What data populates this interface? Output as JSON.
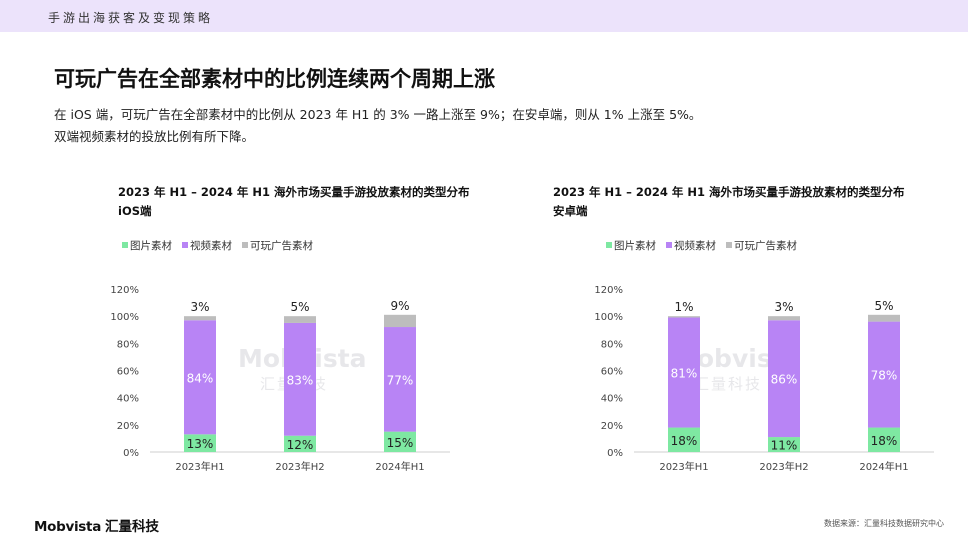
{
  "header": {
    "band_label": "手游出海获客及变现策略"
  },
  "page": {
    "title": "可玩广告在全部素材中的比例连续两个周期上涨",
    "desc_line1": "在 iOS 端，可玩广告在全部素材中的比例从 2023 年 H1 的 3% 一路上涨至 9%；在安卓端，则从 1% 上涨至 5%。",
    "desc_line2": "双端视频素材的投放比例有所下降。"
  },
  "watermark": {
    "wordmark": "Mobvista",
    "cn": "汇量科技"
  },
  "footer": {
    "logo": "Mobvista",
    "logo_cn": "汇量科技",
    "source": "数据来源：汇量科技数据研究中心"
  },
  "colors": {
    "image": "#7ee8a2",
    "video": "#b884f5",
    "playable": "#bdbdbd",
    "band": "#ece3fb"
  },
  "chart_data": [
    {
      "type": "bar",
      "stacked": true,
      "title": "2023 年 H1 – 2024 年 H1 海外市场买量手游投放素材的类型分布",
      "subtitle": "iOS端",
      "categories": [
        "2023年H1",
        "2023年H2",
        "2024年H1"
      ],
      "series": [
        {
          "name": "图片素材",
          "values": [
            13,
            12,
            15
          ],
          "labels": [
            "13%",
            "12%",
            "15%"
          ],
          "color": "#7ee8a2"
        },
        {
          "name": "视频素材",
          "values": [
            84,
            83,
            77
          ],
          "labels": [
            "84%",
            "83%",
            "77%"
          ],
          "color": "#b884f5"
        },
        {
          "name": "可玩广告素材",
          "values": [
            3,
            5,
            9
          ],
          "labels": [
            "3%",
            "5%",
            "9%"
          ],
          "color": "#bdbdbd"
        }
      ],
      "yticks": [
        "0%",
        "20%",
        "40%",
        "60%",
        "80%",
        "100%",
        "120%"
      ],
      "ylim": [
        0,
        120
      ],
      "legend": "top-left",
      "grid": false
    },
    {
      "type": "bar",
      "stacked": true,
      "title": "2023 年 H1 – 2024 年 H1 海外市场买量手游投放素材的类型分布",
      "subtitle": "安卓端",
      "categories": [
        "2023年H1",
        "2023年H2",
        "2024年H1"
      ],
      "series": [
        {
          "name": "图片素材",
          "values": [
            18,
            11,
            18
          ],
          "labels": [
            "18%",
            "11%",
            "18%"
          ],
          "color": "#7ee8a2"
        },
        {
          "name": "视频素材",
          "values": [
            81,
            86,
            78
          ],
          "labels": [
            "81%",
            "86%",
            "78%"
          ],
          "color": "#b884f5"
        },
        {
          "name": "可玩广告素材",
          "values": [
            1,
            3,
            5
          ],
          "labels": [
            "1%",
            "3%",
            "5%"
          ],
          "color": "#bdbdbd"
        }
      ],
      "yticks": [
        "0%",
        "20%",
        "40%",
        "60%",
        "80%",
        "100%",
        "120%"
      ],
      "ylim": [
        0,
        120
      ],
      "legend": "top-left",
      "grid": false
    }
  ]
}
